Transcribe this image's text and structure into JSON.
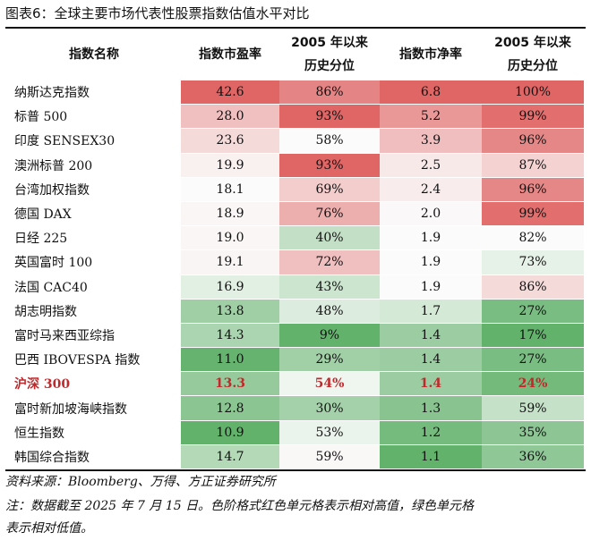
{
  "title": "图表6：全球主要市场代表性股票指数估值水平对比",
  "headers": {
    "name": "指数名称",
    "pe": "指数市盈率",
    "pe_pct_line1": "2005 年以来",
    "pe_pct_line2": "历史分位",
    "pb": "指数市净率",
    "pb_pct_line1": "2005 年以来",
    "pb_pct_line2": "历史分位"
  },
  "rows": [
    {
      "name": "纳斯达克指数",
      "pe": "42.6",
      "pe_pct": "86%",
      "pb": "6.8",
      "pb_pct": "100%"
    },
    {
      "name": "标普 500",
      "pe": "28.0",
      "pe_pct": "93%",
      "pb": "5.2",
      "pb_pct": "99%"
    },
    {
      "name": "印度 SENSEX30",
      "pe": "23.6",
      "pe_pct": "58%",
      "pb": "3.9",
      "pb_pct": "96%"
    },
    {
      "name": "澳洲标普 200",
      "pe": "19.9",
      "pe_pct": "93%",
      "pb": "2.5",
      "pb_pct": "87%"
    },
    {
      "name": "台湾加权指数",
      "pe": "18.1",
      "pe_pct": "69%",
      "pb": "2.4",
      "pb_pct": "96%"
    },
    {
      "name": "德国 DAX",
      "pe": "18.9",
      "pe_pct": "76%",
      "pb": "2.0",
      "pb_pct": "99%"
    },
    {
      "name": "日经 225",
      "pe": "19.0",
      "pe_pct": "40%",
      "pb": "1.9",
      "pb_pct": "82%"
    },
    {
      "name": "英国富时 100",
      "pe": "19.1",
      "pe_pct": "72%",
      "pb": "1.9",
      "pb_pct": "73%"
    },
    {
      "name": "法国 CAC40",
      "pe": "16.9",
      "pe_pct": "43%",
      "pb": "1.9",
      "pb_pct": "86%"
    },
    {
      "name": "胡志明指数",
      "pe": "13.8",
      "pe_pct": "48%",
      "pb": "1.7",
      "pb_pct": "27%"
    },
    {
      "name": "富时马来西亚综指",
      "pe": "14.3",
      "pe_pct": "9%",
      "pb": "1.4",
      "pb_pct": "17%"
    },
    {
      "name": "巴西 IBOVESPA 指数",
      "pe": "11.0",
      "pe_pct": "29%",
      "pb": "1.4",
      "pb_pct": "27%"
    },
    {
      "name": "沪深 300",
      "pe": "13.3",
      "pe_pct": "54%",
      "pb": "1.4",
      "pb_pct": "24%",
      "highlight": true
    },
    {
      "name": "富时新加坡海峡指数",
      "pe": "12.8",
      "pe_pct": "30%",
      "pb": "1.3",
      "pb_pct": "59%"
    },
    {
      "name": "恒生指数",
      "pe": "10.9",
      "pe_pct": "53%",
      "pb": "1.2",
      "pb_pct": "35%"
    },
    {
      "name": "韩国综合指数",
      "pe": "14.7",
      "pe_pct": "59%",
      "pb": "1.1",
      "pb_pct": "36%"
    }
  ],
  "colors": {
    "red_strong": "#e06666",
    "white": "#fbfbfb",
    "green_strong": "#63b26c",
    "highlight_text": "#c0282b"
  },
  "source": "资料来源：Bloomberg、万得、方正证券研究所",
  "note_line1": "注：数据截至 2025 年 7 月 15 日。色阶格式红色单元格表示相对高值，绿色单元格",
  "note_line2": "表示相对低值。"
}
